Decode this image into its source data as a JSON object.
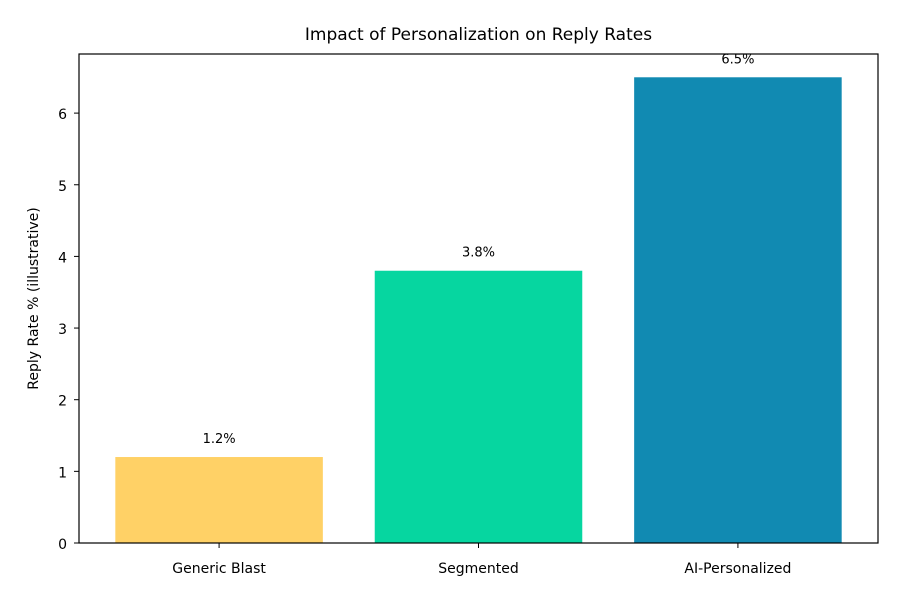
{
  "chart_data": {
    "type": "bar",
    "title": "Impact of Personalization on Reply Rates",
    "xlabel": "",
    "ylabel": "Reply Rate % (illustrative)",
    "categories": [
      "Generic Blast",
      "Segmented",
      "AI-Personalized"
    ],
    "values": [
      1.2,
      3.8,
      6.5
    ],
    "data_labels": [
      "1.2%",
      "3.8%",
      "6.5%"
    ],
    "colors": [
      "#FFD166",
      "#06D6A0",
      "#118AB2"
    ],
    "ylim": [
      0,
      6.825
    ],
    "xlim": [
      -0.54,
      2.54
    ],
    "yticks": [
      0,
      1,
      2,
      3,
      4,
      5,
      6
    ],
    "grid": false,
    "legend": "none"
  }
}
